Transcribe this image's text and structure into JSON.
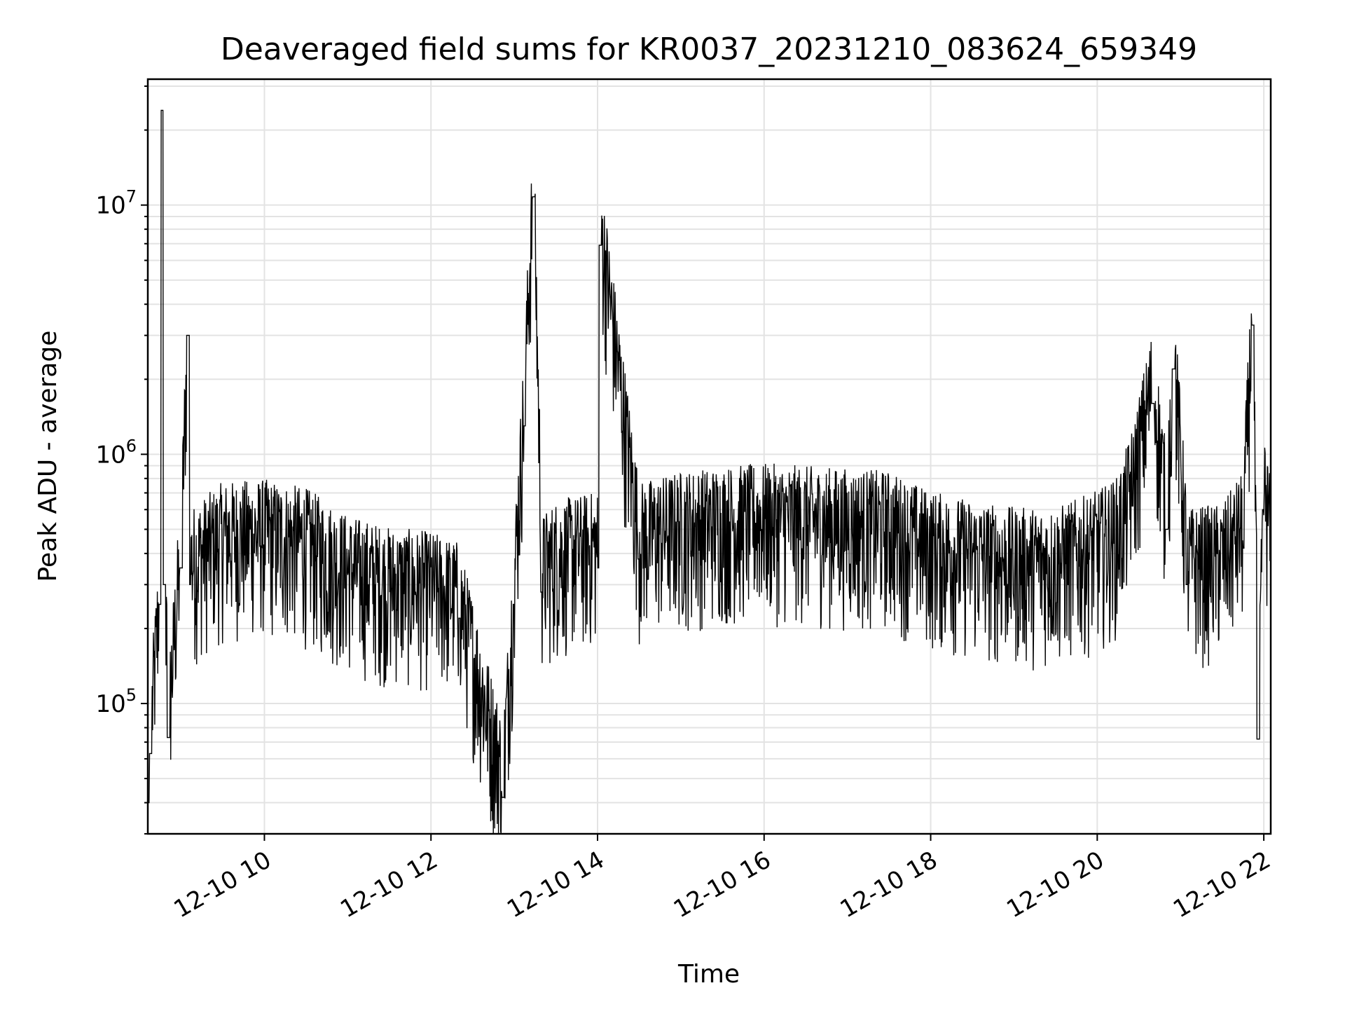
{
  "chart_data": {
    "type": "line",
    "title": "Deaveraged field sums for KR0037_20231210_083624_659349",
    "xlabel": "Time",
    "ylabel": "Peak ADU - average",
    "x_axis": {
      "type": "datetime",
      "range": [
        "2023-12-10 08:36",
        "2023-12-10 22:05"
      ],
      "ticks": [
        "12-10 10",
        "12-10 12",
        "12-10 14",
        "12-10 16",
        "12-10 18",
        "12-10 20",
        "12-10 22"
      ]
    },
    "y_axis": {
      "scale": "log",
      "range": [
        30000,
        32000000
      ],
      "ticks": [
        {
          "base": "10",
          "exp": "5"
        },
        {
          "base": "10",
          "exp": "6"
        },
        {
          "base": "10",
          "exp": "7"
        }
      ]
    },
    "grid": true,
    "line_color": "#000000",
    "series": [
      {
        "values_time_series": [
          [
            "2023-12-10 08:36",
            40000
          ],
          [
            "2023-12-10 08:38",
            63000
          ],
          [
            "2023-12-10 08:45",
            250000
          ],
          [
            "2023-12-10 08:46",
            24000000
          ],
          [
            "2023-12-10 08:48",
            300000
          ],
          [
            "2023-12-10 08:51",
            73000
          ],
          [
            "2023-12-10 09:00",
            350000
          ],
          [
            "2023-12-10 09:05",
            3000000
          ],
          [
            "2023-12-10 09:07",
            300000
          ],
          [
            "2023-12-10 09:30",
            380000
          ],
          [
            "2023-12-10 10:00",
            390000
          ],
          [
            "2023-12-10 10:30",
            360000
          ],
          [
            "2023-12-10 11:00",
            280000
          ],
          [
            "2023-12-10 11:30",
            250000
          ],
          [
            "2023-12-10 12:00",
            240000
          ],
          [
            "2023-12-10 12:20",
            220000
          ],
          [
            "2023-12-10 12:52",
            42000
          ],
          [
            "2023-12-10 13:00",
            250000
          ],
          [
            "2023-12-10 13:07",
            1300000
          ],
          [
            "2023-12-10 13:14",
            10800000
          ],
          [
            "2023-12-10 13:20",
            280000
          ],
          [
            "2023-12-10 13:30",
            320000
          ],
          [
            "2023-12-10 14:00",
            350000
          ],
          [
            "2023-12-10 14:02",
            6900000
          ],
          [
            "2023-12-10 14:30",
            380000
          ],
          [
            "2023-12-10 15:00",
            420000
          ],
          [
            "2023-12-10 15:30",
            440000
          ],
          [
            "2023-12-10 16:00",
            450000
          ],
          [
            "2023-12-10 16:30",
            440000
          ],
          [
            "2023-12-10 17:00",
            430000
          ],
          [
            "2023-12-10 17:30",
            420000
          ],
          [
            "2023-12-10 18:00",
            350000
          ],
          [
            "2023-12-10 18:30",
            320000
          ],
          [
            "2023-12-10 19:00",
            300000
          ],
          [
            "2023-12-10 19:30",
            300000
          ],
          [
            "2023-12-10 20:00",
            350000
          ],
          [
            "2023-12-10 20:15",
            400000
          ],
          [
            "2023-12-10 20:25",
            620000
          ],
          [
            "2023-12-10 20:40",
            1600000
          ],
          [
            "2023-12-10 20:50",
            500000
          ],
          [
            "2023-12-10 20:55",
            2200000
          ],
          [
            "2023-12-10 21:05",
            300000
          ],
          [
            "2023-12-10 21:30",
            310000
          ],
          [
            "2023-12-10 21:45",
            420000
          ],
          [
            "2023-12-10 21:52",
            3300000
          ],
          [
            "2023-12-10 21:56",
            72000
          ],
          [
            "2023-12-10 22:00",
            600000
          ],
          [
            "2023-12-10 22:05",
            400000
          ]
        ]
      }
    ]
  }
}
